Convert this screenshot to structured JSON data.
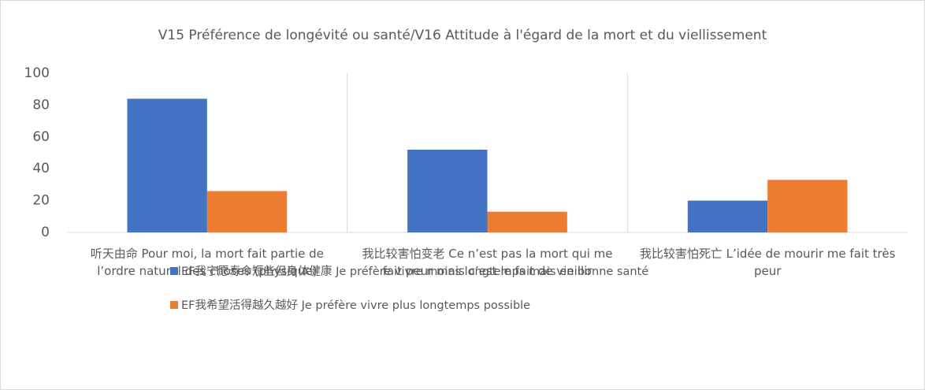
{
  "chart_data": {
    "type": "bar",
    "title": "V15 Préférence de longévité ou santé/V16 Attitude à l'égard de la mort et du viellissement",
    "categories": [
      "听天由命  Pour moi, la mort fait partie de l’ordre naturel des choses (physique)",
      "我比较害怕变老 Ce n’est pas la mort qui me fait peur mais c’est le fait de vieillir",
      "我比较害怕死亡 L’idée de mourir me fait très peur"
    ],
    "series": [
      {
        "name": "EF我宁愿寿命短些但身体健康 Je préfère vivre moins longtemps mais en bonne santé",
        "color": "#4472c4",
        "values": [
          84,
          52,
          20
        ]
      },
      {
        "name": "EF我希望活得越久越好 Je préfère vivre plus longtemps possible",
        "color": "#ed7d31",
        "values": [
          26,
          13,
          33
        ]
      }
    ],
    "ylim": [
      0,
      100
    ],
    "yticks": [
      0,
      20,
      40,
      60,
      80,
      100
    ],
    "grid": false,
    "legend": "bottom"
  }
}
